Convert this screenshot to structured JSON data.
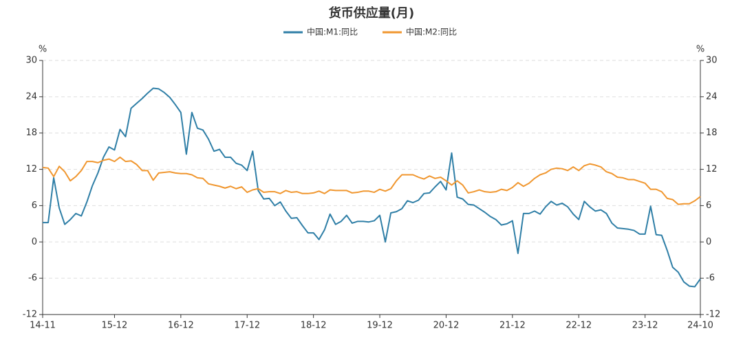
{
  "chart_data": {
    "type": "line",
    "title": "货币供应量(月)",
    "ylabel": "%",
    "y2label": "%",
    "categories": [
      "14-11",
      null,
      null,
      null,
      null,
      null,
      null,
      null,
      null,
      null,
      null,
      null,
      null,
      "15-12",
      null,
      null,
      null,
      null,
      null,
      null,
      null,
      null,
      null,
      null,
      null,
      "16-12",
      null,
      null,
      null,
      null,
      null,
      null,
      null,
      null,
      null,
      null,
      null,
      "17-12",
      null,
      null,
      null,
      null,
      null,
      null,
      null,
      null,
      null,
      null,
      null,
      "18-12",
      null,
      null,
      null,
      null,
      null,
      null,
      null,
      null,
      null,
      null,
      null,
      "19-12",
      null,
      null,
      null,
      null,
      null,
      null,
      null,
      null,
      null,
      null,
      null,
      "20-12",
      null,
      null,
      null,
      null,
      null,
      null,
      null,
      null,
      null,
      null,
      null,
      "21-12",
      null,
      null,
      null,
      null,
      null,
      null,
      null,
      null,
      null,
      null,
      null,
      "22-12",
      null,
      null,
      null,
      null,
      null,
      null,
      null,
      null,
      null,
      null,
      null,
      "23-12",
      null,
      null,
      null,
      null,
      null,
      null,
      null,
      null,
      null,
      "24-10"
    ],
    "series": [
      {
        "name": "中国:M1:同比",
        "color": "#2e7ea6",
        "axis": "y",
        "values": [
          3.2,
          3.2,
          10.6,
          5.6,
          2.9,
          3.7,
          4.7,
          4.3,
          6.6,
          9.3,
          11.4,
          14.0,
          15.7,
          15.2,
          18.6,
          17.4,
          22.1,
          22.9,
          23.7,
          24.6,
          25.4,
          25.3,
          24.7,
          23.9,
          22.7,
          21.4,
          14.5,
          21.4,
          18.8,
          18.5,
          17.0,
          15.0,
          15.3,
          14.0,
          14.0,
          13.0,
          12.7,
          11.8,
          15.0,
          8.5,
          7.1,
          7.2,
          6.0,
          6.6,
          5.1,
          3.9,
          4.0,
          2.7,
          1.5,
          1.5,
          0.4,
          2.0,
          4.6,
          2.9,
          3.4,
          4.4,
          3.1,
          3.4,
          3.4,
          3.3,
          3.5,
          4.4,
          0.0,
          4.8,
          5.0,
          5.5,
          6.8,
          6.5,
          6.9,
          8.0,
          8.1,
          9.1,
          10.0,
          8.6,
          14.7,
          7.4,
          7.1,
          6.2,
          6.1,
          5.5,
          4.9,
          4.2,
          3.7,
          2.8,
          3.0,
          3.5,
          -1.9,
          4.7,
          4.7,
          5.1,
          4.6,
          5.8,
          6.7,
          6.1,
          6.4,
          5.8,
          4.6,
          3.7,
          6.7,
          5.8,
          5.1,
          5.3,
          4.7,
          3.1,
          2.3,
          2.2,
          2.1,
          1.9,
          1.3,
          1.3,
          5.9,
          1.2,
          1.1,
          -1.4,
          -4.2,
          -5.0,
          -6.6,
          -7.3,
          -7.4,
          -6.1
        ]
      },
      {
        "name": "中国:M2:同比",
        "color": "#f0962e",
        "axis": "y2",
        "values": [
          12.3,
          12.2,
          10.8,
          12.5,
          11.6,
          10.1,
          10.8,
          11.8,
          13.3,
          13.3,
          13.1,
          13.5,
          13.7,
          13.3,
          14.0,
          13.3,
          13.4,
          12.8,
          11.8,
          11.8,
          10.2,
          11.4,
          11.5,
          11.6,
          11.4,
          11.3,
          11.3,
          11.1,
          10.6,
          10.5,
          9.6,
          9.4,
          9.2,
          8.9,
          9.2,
          8.8,
          9.1,
          8.2,
          8.6,
          8.8,
          8.2,
          8.3,
          8.3,
          8.0,
          8.5,
          8.2,
          8.3,
          8.0,
          8.0,
          8.1,
          8.4,
          8.0,
          8.6,
          8.5,
          8.5,
          8.5,
          8.1,
          8.2,
          8.4,
          8.4,
          8.2,
          8.7,
          8.4,
          8.8,
          10.1,
          11.1,
          11.1,
          11.1,
          10.7,
          10.4,
          10.9,
          10.5,
          10.7,
          10.1,
          9.4,
          10.1,
          9.4,
          8.1,
          8.3,
          8.6,
          8.3,
          8.2,
          8.3,
          8.7,
          8.5,
          9.0,
          9.8,
          9.2,
          9.7,
          10.5,
          11.1,
          11.4,
          12.0,
          12.2,
          12.1,
          11.8,
          12.4,
          11.8,
          12.6,
          12.9,
          12.7,
          12.4,
          11.6,
          11.3,
          10.7,
          10.6,
          10.3,
          10.3,
          10.0,
          9.7,
          8.7,
          8.7,
          8.3,
          7.2,
          7.0,
          6.2,
          6.3,
          6.3,
          6.8,
          7.5
        ]
      }
    ],
    "ylim": [
      -12,
      30
    ],
    "yticks": [
      -12,
      -6,
      0,
      6,
      12,
      18,
      24,
      30
    ],
    "y2lim": [
      -12,
      30
    ],
    "y2ticks": [
      -12,
      -6,
      0,
      6,
      12,
      18,
      24,
      30
    ],
    "grid": true
  }
}
